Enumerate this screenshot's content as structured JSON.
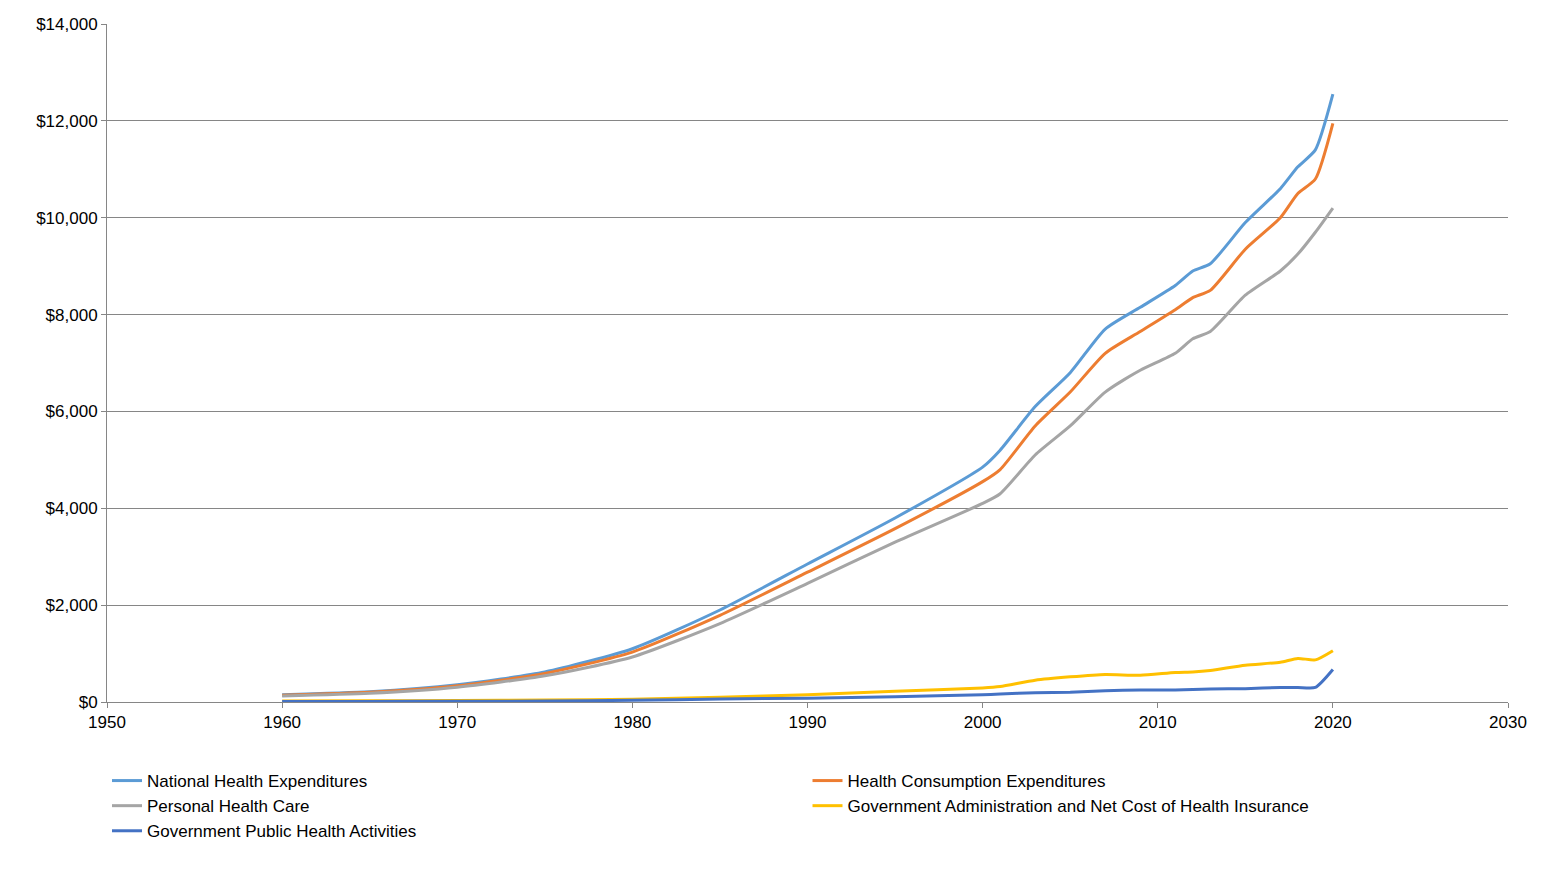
{
  "chart_data": {
    "type": "line",
    "x": [
      1960,
      1965,
      1970,
      1975,
      1980,
      1985,
      1990,
      1995,
      2000,
      2001,
      2003,
      2005,
      2007,
      2009,
      2011,
      2012,
      2013,
      2015,
      2017,
      2018,
      2019,
      2020
    ],
    "series": [
      {
        "name": "National Health Expenditures",
        "color": "#5b9bd5",
        "values": [
          150,
          210,
          355,
          620,
          1100,
          1900,
          2850,
          3800,
          4850,
          5200,
          6100,
          6800,
          7700,
          8150,
          8600,
          8900,
          9050,
          9900,
          10600,
          11050,
          11400,
          12550
        ]
      },
      {
        "name": "Health Consumption Expenditures",
        "color": "#ed7d31",
        "values": [
          140,
          200,
          335,
          590,
          1030,
          1790,
          2680,
          3580,
          4550,
          4800,
          5700,
          6400,
          7200,
          7650,
          8100,
          8350,
          8500,
          9350,
          10000,
          10500,
          10800,
          11950
        ]
      },
      {
        "name": "Personal Health Care",
        "color": "#a5a5a5",
        "values": [
          125,
          180,
          305,
          540,
          930,
          1620,
          2450,
          3300,
          4100,
          4300,
          5100,
          5700,
          6400,
          6850,
          7200,
          7500,
          7650,
          8400,
          8900,
          9250,
          9700,
          10200
        ]
      },
      {
        "name": "Government Administration and Net Cost of Health Insurance",
        "color": "#ffc000",
        "values": [
          20,
          25,
          30,
          40,
          55,
          100,
          150,
          220,
          290,
          320,
          450,
          520,
          570,
          550,
          610,
          620,
          650,
          760,
          820,
          900,
          870,
          1060
        ]
      },
      {
        "name": "Government Public Health Activities",
        "color": "#4472c4",
        "values": [
          10,
          12,
          15,
          20,
          35,
          60,
          80,
          110,
          150,
          165,
          190,
          200,
          230,
          250,
          250,
          260,
          270,
          275,
          300,
          300,
          300,
          670
        ]
      }
    ],
    "xlim": [
      1950,
      2030
    ],
    "xticks": [
      1950,
      1960,
      1970,
      1980,
      1990,
      2000,
      2010,
      2020,
      2030
    ],
    "ylim": [
      0,
      14000
    ],
    "yticks": [
      {
        "value": 0,
        "label": "$0"
      },
      {
        "value": 2000,
        "label": "$2,000"
      },
      {
        "value": 4000,
        "label": "$4,000"
      },
      {
        "value": 6000,
        "label": "$6,000"
      },
      {
        "value": 8000,
        "label": "$8,000"
      },
      {
        "value": 10000,
        "label": "$10,000"
      },
      {
        "value": 12000,
        "label": "$12,000"
      },
      {
        "value": 14000,
        "label": "$14,000"
      }
    ],
    "grid": true,
    "legend": "bottom"
  }
}
